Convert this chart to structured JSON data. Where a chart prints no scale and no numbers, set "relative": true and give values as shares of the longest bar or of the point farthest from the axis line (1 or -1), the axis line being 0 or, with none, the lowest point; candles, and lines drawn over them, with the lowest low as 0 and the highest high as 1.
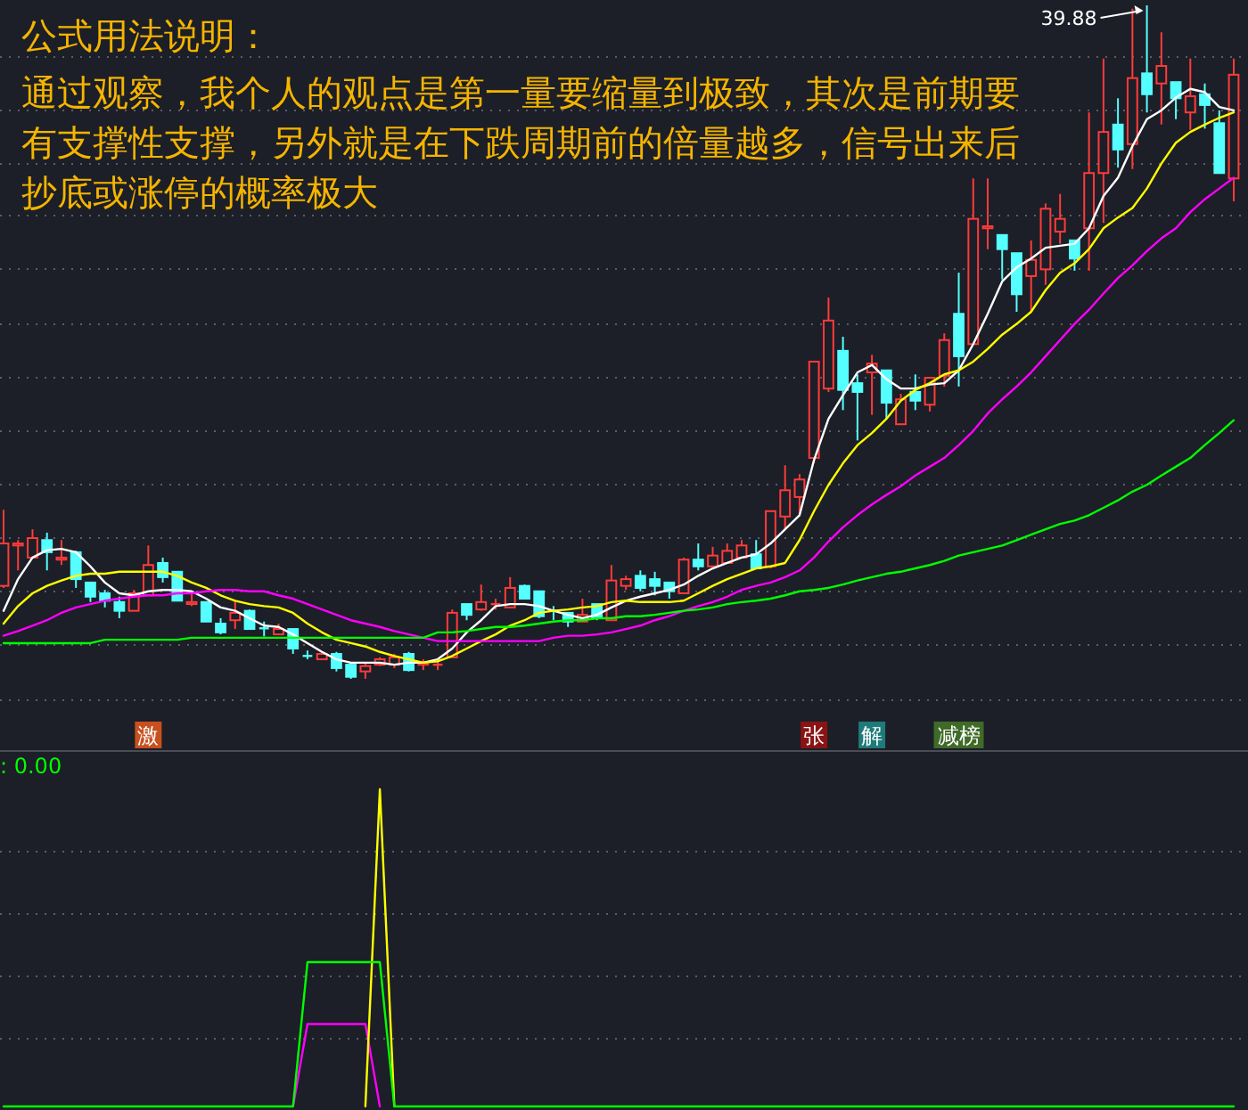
{
  "chart_data": [
    {
      "type": "candlestick",
      "title": "公式用法说明：",
      "subtitle": "通过观察，我个人的观点是第一量要缩量到极致，其次是前期要有支撑性支撑，另外就是在下跌周期前的倍量越多，信号出来后抄底或涨停的概率极大",
      "relative": true,
      "grid": true,
      "categories": [
        null,
        null,
        null,
        null,
        null,
        null,
        null,
        null,
        null,
        null,
        null,
        null,
        null,
        null,
        null,
        null,
        null,
        null,
        null,
        null,
        null,
        null,
        null,
        null,
        null,
        null,
        null,
        null,
        null,
        null,
        null,
        null,
        null,
        null,
        null,
        null,
        null,
        null,
        null,
        null,
        null,
        null,
        null,
        null,
        null,
        null,
        null,
        null,
        null,
        null,
        null,
        null,
        null,
        null,
        null,
        null,
        null,
        null,
        null,
        null,
        null,
        null,
        null,
        null,
        null,
        null,
        null,
        null,
        null,
        null,
        null,
        null,
        null,
        null,
        null,
        null,
        null,
        null,
        null,
        null,
        null,
        null,
        null,
        null,
        null,
        null
      ],
      "ohlc": [
        [
          0.138,
          0.251,
          0.135,
          0.201
        ],
        [
          0.198,
          0.206,
          0.161,
          0.201
        ],
        [
          0.18,
          0.222,
          0.18,
          0.209
        ],
        [
          0.206,
          0.217,
          0.161,
          0.188
        ],
        [
          0.177,
          0.206,
          0.169,
          0.18
        ],
        [
          0.188,
          0.19,
          0.135,
          0.148
        ],
        [
          0.143,
          0.143,
          0.114,
          0.122
        ],
        [
          0.127,
          0.132,
          0.106,
          0.116
        ],
        [
          0.114,
          0.122,
          0.09,
          0.101
        ],
        [
          0.101,
          0.132,
          0.101,
          0.127
        ],
        [
          0.124,
          0.198,
          0.124,
          0.169
        ],
        [
          0.172,
          0.18,
          0.143,
          0.151
        ],
        [
          0.159,
          0.159,
          0.116,
          0.116
        ],
        [
          0.111,
          0.13,
          0.108,
          0.114
        ],
        [
          0.114,
          0.114,
          0.085,
          0.085
        ],
        [
          0.082,
          0.09,
          0.066,
          0.069
        ],
        [
          0.087,
          0.116,
          0.074,
          0.098
        ],
        [
          0.101,
          0.103,
          0.074,
          0.074
        ],
        [
          0.075,
          0.085,
          0.063,
          0.074
        ],
        [
          0.066,
          0.082,
          0.066,
          0.074
        ],
        [
          0.074,
          0.074,
          0.037,
          0.045
        ],
        [
          0.034,
          0.042,
          0.029,
          0.033
        ],
        [
          0.029,
          0.04,
          0.029,
          0.037
        ],
        [
          0.037,
          0.04,
          0.011,
          0.016
        ],
        [
          0.021,
          0.024,
          0,
          0.003
        ],
        [
          0.011,
          0.024,
          0,
          0.019
        ],
        [
          0.021,
          0.032,
          0.019,
          0.029
        ],
        [
          0.021,
          0.037,
          0.016,
          0.032
        ],
        [
          0.037,
          0.04,
          0.011,
          0.013
        ],
        [
          0.021,
          0.029,
          0.013,
          0.024
        ],
        [
          0.021,
          0.029,
          0.013,
          0.021
        ],
        [
          0.032,
          0.103,
          0.032,
          0.098
        ],
        [
          0.111,
          0.111,
          0.087,
          0.095
        ],
        [
          0.103,
          0.14,
          0.101,
          0.114
        ],
        [
          0.111,
          0.119,
          0.103,
          0.111
        ],
        [
          0.106,
          0.151,
          0.106,
          0.135
        ],
        [
          0.138,
          0.14,
          0.119,
          0.119
        ],
        [
          0.13,
          0.13,
          0.09,
          0.093
        ],
        [
          0.101,
          0.108,
          0.087,
          0.1
        ],
        [
          0.098,
          0.098,
          0.077,
          0.085
        ],
        [
          0.085,
          0.119,
          0.085,
          0.095
        ],
        [
          0.111,
          0.111,
          0.087,
          0.09
        ],
        [
          0.087,
          0.169,
          0.087,
          0.146
        ],
        [
          0.138,
          0.153,
          0.132,
          0.148
        ],
        [
          0.153,
          0.161,
          0.13,
          0.135
        ],
        [
          0.148,
          0.159,
          0.124,
          0.138
        ],
        [
          0.143,
          0.143,
          0.119,
          0.13
        ],
        [
          0.127,
          0.18,
          0.127,
          0.177
        ],
        [
          0.177,
          0.201,
          0.161,
          0.167
        ],
        [
          0.167,
          0.196,
          0.167,
          0.183
        ],
        [
          0.172,
          0.201,
          0.172,
          0.19
        ],
        [
          0.18,
          0.206,
          0.18,
          0.198
        ],
        [
          0.185,
          0.206,
          0.164,
          0.164
        ],
        [
          0.167,
          0.249,
          0.164,
          0.249
        ],
        [
          0.241,
          0.317,
          0.222,
          0.28
        ],
        [
          0.27,
          0.304,
          0.241,
          0.296
        ],
        [
          0.328,
          0.471,
          0.32,
          0.471
        ],
        [
          0.431,
          0.566,
          0.426,
          0.532
        ],
        [
          0.487,
          0.508,
          0.399,
          0.429
        ],
        [
          0.439,
          0.452,
          0.354,
          0.426
        ],
        [
          0.455,
          0.481,
          0.392,
          0.468
        ],
        [
          0.458,
          0.458,
          0.386,
          0.41
        ],
        [
          0.378,
          0.423,
          0.378,
          0.415
        ],
        [
          0.426,
          0.452,
          0.399,
          0.413
        ],
        [
          0.407,
          0.447,
          0.397,
          0.447
        ],
        [
          0.45,
          0.513,
          0.434,
          0.503
        ],
        [
          0.542,
          0.603,
          0.434,
          0.479
        ],
        [
          0.497,
          0.743,
          0.497,
          0.683
        ],
        [
          0.669,
          0.743,
          0.638,
          0.672
        ],
        [
          0.659,
          0.659,
          0.593,
          0.638
        ],
        [
          0.632,
          0.632,
          0.545,
          0.571
        ],
        [
          0.598,
          0.651,
          0.545,
          0.622
        ],
        [
          0.608,
          0.706,
          0.585,
          0.698
        ],
        [
          0.664,
          0.72,
          0.646,
          0.683
        ],
        [
          0.651,
          0.651,
          0.606,
          0.624
        ],
        [
          0.669,
          0.841,
          0.606,
          0.751
        ],
        [
          0.751,
          0.921,
          0.677,
          0.812
        ],
        [
          0.823,
          0.862,
          0.759,
          0.786
        ],
        [
          0.794,
          0.995,
          0.757,
          0.892
        ],
        [
          0.899,
          1,
          0.841,
          0.868
        ],
        [
          0.884,
          0.96,
          0.823,
          0.91
        ],
        [
          0.886,
          0.886,
          0.831,
          0.862
        ],
        [
          0.841,
          0.921,
          0.815,
          0.865
        ],
        [
          0.868,
          0.884,
          0.817,
          0.852
        ],
        [
          0.825,
          0.844,
          0.751,
          0.751
        ],
        [
          0.743,
          0.921,
          0.709,
          0.897
        ]
      ],
      "series": [
        {
          "type": "line",
          "color": "#ffffff",
          "values": [
            0.101,
            0.148,
            0.18,
            0.191,
            0.193,
            0.188,
            0.167,
            0.143,
            0.127,
            0.124,
            0.13,
            0.132,
            0.132,
            0.13,
            0.119,
            0.106,
            0.101,
            0.09,
            0.079,
            0.077,
            0.066,
            0.053,
            0.04,
            0.029,
            0.024,
            0.024,
            0.024,
            0.021,
            0.024,
            0.024,
            0.029,
            0.045,
            0.069,
            0.087,
            0.108,
            0.111,
            0.111,
            0.108,
            0.101,
            0.095,
            0.09,
            0.095,
            0.106,
            0.116,
            0.122,
            0.127,
            0.132,
            0.14,
            0.153,
            0.164,
            0.172,
            0.18,
            0.185,
            0.201,
            0.222,
            0.243,
            0.325,
            0.386,
            0.421,
            0.455,
            0.466,
            0.445,
            0.431,
            0.431,
            0.437,
            0.439,
            0.458,
            0.497,
            0.542,
            0.59,
            0.611,
            0.624,
            0.64,
            0.643,
            0.646,
            0.669,
            0.717,
            0.744,
            0.791,
            0.831,
            0.844,
            0.863,
            0.876,
            0.871,
            0.849,
            0.844
          ]
        },
        {
          "type": "line",
          "color": "#ffff00",
          "values": [
            0.082,
            0.108,
            0.127,
            0.138,
            0.146,
            0.153,
            0.156,
            0.156,
            0.159,
            0.159,
            0.159,
            0.159,
            0.153,
            0.143,
            0.135,
            0.124,
            0.116,
            0.111,
            0.108,
            0.106,
            0.098,
            0.082,
            0.069,
            0.058,
            0.053,
            0.048,
            0.04,
            0.034,
            0.029,
            0.024,
            0.026,
            0.034,
            0.045,
            0.056,
            0.066,
            0.079,
            0.087,
            0.098,
            0.101,
            0.103,
            0.106,
            0.108,
            0.114,
            0.116,
            0.114,
            0.114,
            0.114,
            0.116,
            0.127,
            0.138,
            0.148,
            0.156,
            0.164,
            0.167,
            0.172,
            0.206,
            0.249,
            0.288,
            0.32,
            0.347,
            0.365,
            0.386,
            0.413,
            0.429,
            0.439,
            0.452,
            0.458,
            0.471,
            0.49,
            0.511,
            0.527,
            0.545,
            0.577,
            0.603,
            0.617,
            0.638,
            0.669,
            0.685,
            0.699,
            0.728,
            0.765,
            0.796,
            0.812,
            0.823,
            0.833,
            0.841
          ]
        },
        {
          "type": "line",
          "color": "#ff00ff",
          "values": [
            0.064,
            0.071,
            0.079,
            0.087,
            0.098,
            0.106,
            0.111,
            0.116,
            0.119,
            0.122,
            0.124,
            0.124,
            0.127,
            0.127,
            0.13,
            0.132,
            0.132,
            0.13,
            0.13,
            0.124,
            0.119,
            0.111,
            0.103,
            0.095,
            0.087,
            0.082,
            0.077,
            0.071,
            0.066,
            0.061,
            0.056,
            0.056,
            0.056,
            0.056,
            0.056,
            0.056,
            0.056,
            0.056,
            0.061,
            0.064,
            0.064,
            0.066,
            0.069,
            0.074,
            0.079,
            0.087,
            0.093,
            0.101,
            0.108,
            0.114,
            0.122,
            0.132,
            0.138,
            0.143,
            0.151,
            0.161,
            0.18,
            0.204,
            0.225,
            0.243,
            0.259,
            0.273,
            0.286,
            0.302,
            0.315,
            0.328,
            0.347,
            0.368,
            0.394,
            0.415,
            0.434,
            0.455,
            0.479,
            0.503,
            0.527,
            0.548,
            0.572,
            0.595,
            0.614,
            0.635,
            0.654,
            0.669,
            0.693,
            0.712,
            0.728,
            0.744
          ]
        },
        {
          "type": "line",
          "color": "#00ff00",
          "values": [
            0.053,
            0.053,
            0.053,
            0.053,
            0.053,
            0.053,
            0.053,
            0.058,
            0.058,
            0.058,
            0.058,
            0.058,
            0.058,
            0.061,
            0.061,
            0.061,
            0.061,
            0.061,
            0.061,
            0.061,
            0.061,
            0.061,
            0.061,
            0.061,
            0.061,
            0.061,
            0.061,
            0.061,
            0.061,
            0.061,
            0.069,
            0.069,
            0.071,
            0.074,
            0.077,
            0.077,
            0.079,
            0.082,
            0.085,
            0.087,
            0.087,
            0.09,
            0.09,
            0.093,
            0.093,
            0.095,
            0.098,
            0.101,
            0.103,
            0.106,
            0.111,
            0.114,
            0.116,
            0.119,
            0.124,
            0.13,
            0.132,
            0.135,
            0.14,
            0.146,
            0.151,
            0.156,
            0.159,
            0.164,
            0.169,
            0.175,
            0.183,
            0.188,
            0.193,
            0.198,
            0.206,
            0.214,
            0.222,
            0.23,
            0.235,
            0.243,
            0.254,
            0.265,
            0.278,
            0.288,
            0.302,
            0.315,
            0.328,
            0.347,
            0.365,
            0.384
          ]
        }
      ],
      "annotations": [
        "39.88",
        "激",
        "张",
        "解",
        "减榜"
      ]
    },
    {
      "type": "line",
      "relative": true,
      "grid": true,
      "categories": [
        null,
        null,
        null,
        null,
        null,
        null,
        null,
        null,
        null,
        null,
        null,
        null,
        null,
        null,
        null,
        null,
        null,
        null,
        null,
        null,
        null,
        null,
        null,
        null,
        null,
        null,
        null,
        null,
        null,
        null,
        null,
        null,
        null,
        null,
        null,
        null,
        null,
        null,
        null,
        null,
        null,
        null,
        null,
        null,
        null,
        null,
        null,
        null,
        null,
        null,
        null,
        null,
        null,
        null,
        null,
        null,
        null,
        null,
        null,
        null,
        null,
        null,
        null,
        null,
        null,
        null,
        null,
        null,
        null,
        null,
        null,
        null,
        null,
        null,
        null,
        null,
        null,
        null,
        null,
        null,
        null,
        null,
        null,
        null,
        null,
        null
      ],
      "series": [
        {
          "color": "#ff00ff",
          "values": [
            null,
            null,
            null,
            null,
            null,
            null,
            null,
            null,
            null,
            null,
            null,
            null,
            null,
            null,
            null,
            null,
            null,
            null,
            null,
            null,
            0,
            0.26,
            0.26,
            0.26,
            0.26,
            0.26,
            0,
            null,
            null,
            null,
            null,
            null,
            null,
            null,
            null,
            null,
            null,
            null,
            null,
            null,
            null,
            null,
            null,
            null,
            null,
            null,
            null,
            null,
            null,
            null,
            null,
            null,
            null,
            null,
            null,
            null,
            null,
            null,
            null,
            null,
            null,
            null,
            null,
            null,
            null,
            null,
            null,
            null,
            null,
            null,
            null,
            null,
            null,
            null,
            null,
            null,
            null,
            null,
            null,
            null,
            null,
            null,
            null,
            null,
            null,
            null
          ]
        },
        {
          "color": "#ffff00",
          "values": [
            null,
            null,
            null,
            null,
            null,
            null,
            null,
            null,
            null,
            null,
            null,
            null,
            null,
            null,
            null,
            null,
            null,
            null,
            null,
            null,
            null,
            null,
            null,
            null,
            null,
            0,
            1,
            0,
            null,
            null,
            null,
            null,
            null,
            null,
            null,
            null,
            null,
            null,
            null,
            null,
            null,
            null,
            null,
            null,
            null,
            null,
            null,
            null,
            null,
            null,
            null,
            null,
            null,
            null,
            null,
            null,
            null,
            null,
            null,
            null,
            null,
            null,
            null,
            null,
            null,
            null,
            null,
            null,
            null,
            null,
            null,
            null,
            null,
            null,
            null,
            null,
            null,
            null,
            null,
            null,
            null,
            null,
            null,
            null,
            null,
            null
          ]
        },
        {
          "color": "#00ff00",
          "values": [
            0,
            0,
            0,
            0,
            0,
            0,
            0,
            0,
            0,
            0,
            0,
            0,
            0,
            0,
            0,
            0,
            0,
            0,
            0,
            0,
            0,
            0.455,
            0.455,
            0.455,
            0.455,
            0.455,
            0.455,
            0,
            0,
            0,
            0,
            0,
            0,
            0,
            0,
            0,
            0,
            0,
            0,
            0,
            0,
            0,
            0,
            0,
            0,
            0,
            0,
            0,
            0,
            0,
            0,
            0,
            0,
            0,
            0,
            0,
            0,
            0,
            0,
            0,
            0,
            0,
            0,
            0,
            0,
            0,
            0,
            0,
            0,
            0,
            0,
            0,
            0,
            0,
            0,
            0,
            0,
            0,
            0,
            0,
            0,
            0,
            0,
            0,
            0,
            0
          ]
        }
      ],
      "annotations": [
        ": 0.00"
      ]
    }
  ]
}
